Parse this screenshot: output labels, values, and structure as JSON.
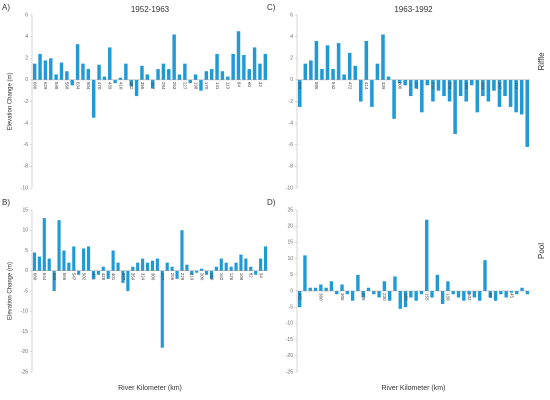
{
  "chart_data": [
    {
      "type": "bar",
      "panel": "A)",
      "title": "1952-1963",
      "ylabel": "Elevation Change (m)",
      "color": "#1f9ad6",
      "ylim": [
        -10,
        6
      ],
      "yticks": [
        6,
        4,
        2,
        0,
        -2,
        -4,
        -6,
        -8,
        -10
      ],
      "categories": [
        "666",
        null,
        "629",
        null,
        "598",
        null,
        "568",
        null,
        "534",
        null,
        "504",
        null,
        "470",
        null,
        "439",
        null,
        "410",
        null,
        "382",
        null,
        "355",
        null,
        "317",
        null,
        "284",
        null,
        "253",
        null,
        "227",
        null,
        "198",
        null,
        "170",
        null,
        "141",
        null,
        "113",
        null,
        "84",
        null,
        "60",
        null,
        "32",
        null
      ],
      "values": [
        1.5,
        2.4,
        1.8,
        2.0,
        0.5,
        1.6,
        0.8,
        -0.5,
        3.3,
        1.5,
        1.0,
        -3.5,
        1.4,
        0.3,
        3.0,
        -0.3,
        0.2,
        1.5,
        -0.6,
        -1.5,
        1.3,
        0.5,
        -0.8,
        1.0,
        1.5,
        1.0,
        4.2,
        0.5,
        1.5,
        -0.3,
        0.5,
        -1.0,
        0.8,
        1.0,
        2.4,
        0.8,
        0.3,
        2.4,
        4.5,
        2.3,
        1.0,
        3.0,
        1.5,
        2.4
      ]
    },
    {
      "type": "bar",
      "panel": "C)",
      "title": "1963-1992",
      "side_label": "Riffle",
      "color": "#1f9ad6",
      "ylim": [
        -10,
        6
      ],
      "yticks": [
        6,
        4,
        2,
        0,
        -2,
        -4,
        -6,
        -8,
        -10
      ],
      "categories": [
        "666",
        null,
        null,
        "586",
        null,
        null,
        "542",
        null,
        null,
        "472",
        null,
        null,
        "414",
        null,
        null,
        "339",
        null,
        null,
        "306",
        null,
        null,
        "277",
        null,
        null,
        "233",
        null,
        null,
        "206",
        null,
        null,
        "184",
        null,
        null,
        "161",
        null,
        null,
        "147",
        null,
        null,
        "114",
        null,
        null
      ],
      "values": [
        -2.5,
        1.5,
        1.8,
        3.6,
        1.0,
        3.2,
        1.0,
        3.4,
        0.5,
        2.5,
        1.3,
        -2.0,
        3.6,
        -2.5,
        1.5,
        4.2,
        0.3,
        -3.6,
        -0.3,
        -0.5,
        -1.5,
        -0.8,
        -3.0,
        -0.5,
        -2.0,
        -1.0,
        -1.5,
        -2.0,
        -5.0,
        -1.5,
        -2.0,
        -0.5,
        -3.0,
        -1.5,
        -2.0,
        -1.0,
        -2.5,
        -1.5,
        -2.5,
        -3.0,
        -3.2,
        -6.2
      ]
    },
    {
      "type": "bar",
      "panel": "B)",
      "ylabel": "Elevation Change (m)",
      "xlabel": "River Kilometer (km)",
      "color": "#1f9ad6",
      "ylim": [
        -25,
        15
      ],
      "yticks": [
        15,
        10,
        5,
        0,
        -5,
        -10,
        -15,
        -20,
        -25
      ],
      "categories": [
        "680",
        null,
        "644",
        null,
        "600",
        null,
        "566",
        null,
        "547",
        null,
        "502",
        null,
        "471",
        null,
        "428",
        null,
        "401",
        null,
        "377",
        null,
        "359",
        null,
        "324",
        null,
        "300",
        null,
        "277",
        null,
        "256",
        null,
        "229",
        null,
        "219",
        null,
        "200",
        null,
        "180",
        null,
        "162",
        null,
        "126",
        null,
        "109",
        null,
        "82",
        null,
        "34",
        null
      ],
      "values": [
        4.5,
        3.5,
        13,
        3,
        -5,
        12.5,
        5,
        2,
        6,
        -1,
        5.5,
        6,
        -2,
        -1,
        1,
        -2,
        5,
        2,
        -3,
        -5,
        1,
        2,
        3,
        2,
        2.5,
        3,
        -19,
        2,
        1,
        -2,
        10,
        1.5,
        -1,
        -0.5,
        0.5,
        -1,
        -2,
        1,
        3,
        2,
        1,
        2,
        4,
        3,
        1,
        -1,
        3,
        6
      ]
    },
    {
      "type": "bar",
      "panel": "D)",
      "side_label": "Pool",
      "xlabel": "River Kilometer (km)",
      "color": "#1f9ad6",
      "ylim": [
        -25,
        25
      ],
      "yticks": [
        25,
        20,
        15,
        10,
        5,
        0,
        -5,
        -10,
        -15,
        -20,
        -25
      ],
      "categories": [
        "402",
        null,
        null,
        null,
        "360",
        null,
        null,
        null,
        "306",
        null,
        null,
        null,
        "278",
        null,
        null,
        null,
        "230",
        null,
        null,
        null,
        "180",
        null,
        null,
        null,
        "155",
        null,
        null,
        null,
        "130",
        null,
        null,
        null,
        "102",
        null,
        null,
        null,
        "80",
        null,
        null,
        null,
        "45",
        null,
        null,
        null
      ],
      "values": [
        -5,
        11,
        1,
        1,
        2,
        1,
        3,
        -1,
        2,
        -1,
        -3,
        5,
        -2,
        1,
        -1,
        -2,
        3,
        -3,
        4.5,
        -5.5,
        -5,
        -2,
        -3,
        -1,
        22,
        -2,
        5,
        -4,
        3,
        -1,
        -2,
        -3,
        -1,
        -2,
        -3,
        9.5,
        -2,
        -3,
        -1,
        -2,
        -0.5,
        -1,
        1,
        -1
      ]
    }
  ]
}
